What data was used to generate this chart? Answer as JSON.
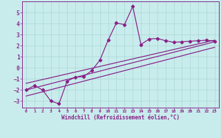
{
  "xlabel": "Windchill (Refroidissement éolien,°C)",
  "bg_color": "#c8ecec",
  "line_color": "#882288",
  "grid_color": "#b0d8d8",
  "xlim": [
    -0.5,
    23.5
  ],
  "ylim": [
    -3.6,
    6.0
  ],
  "xticks": [
    0,
    1,
    2,
    3,
    4,
    5,
    6,
    7,
    8,
    9,
    10,
    11,
    12,
    13,
    14,
    15,
    16,
    17,
    18,
    19,
    20,
    21,
    22,
    23
  ],
  "yticks": [
    -3,
    -2,
    -1,
    0,
    1,
    2,
    3,
    4,
    5
  ],
  "scatter_x": [
    0,
    1,
    2,
    3,
    4,
    5,
    6,
    7,
    8,
    9,
    10,
    11,
    12,
    13,
    14,
    15,
    16,
    17,
    18,
    19,
    20,
    21,
    22,
    23
  ],
  "scatter_y": [
    -2.0,
    -1.6,
    -2.0,
    -3.0,
    -3.25,
    -1.2,
    -0.85,
    -0.8,
    -0.25,
    0.7,
    2.5,
    4.05,
    3.9,
    5.55,
    2.1,
    2.6,
    2.65,
    2.45,
    2.3,
    2.35,
    2.4,
    2.45,
    2.5,
    2.4
  ],
  "line1_x": [
    0,
    23
  ],
  "line1_y": [
    -2.0,
    2.35
  ],
  "line2_x": [
    0,
    23
  ],
  "line2_y": [
    -1.4,
    2.5
  ],
  "line3_x": [
    0,
    23
  ],
  "line3_y": [
    -2.55,
    1.85
  ]
}
